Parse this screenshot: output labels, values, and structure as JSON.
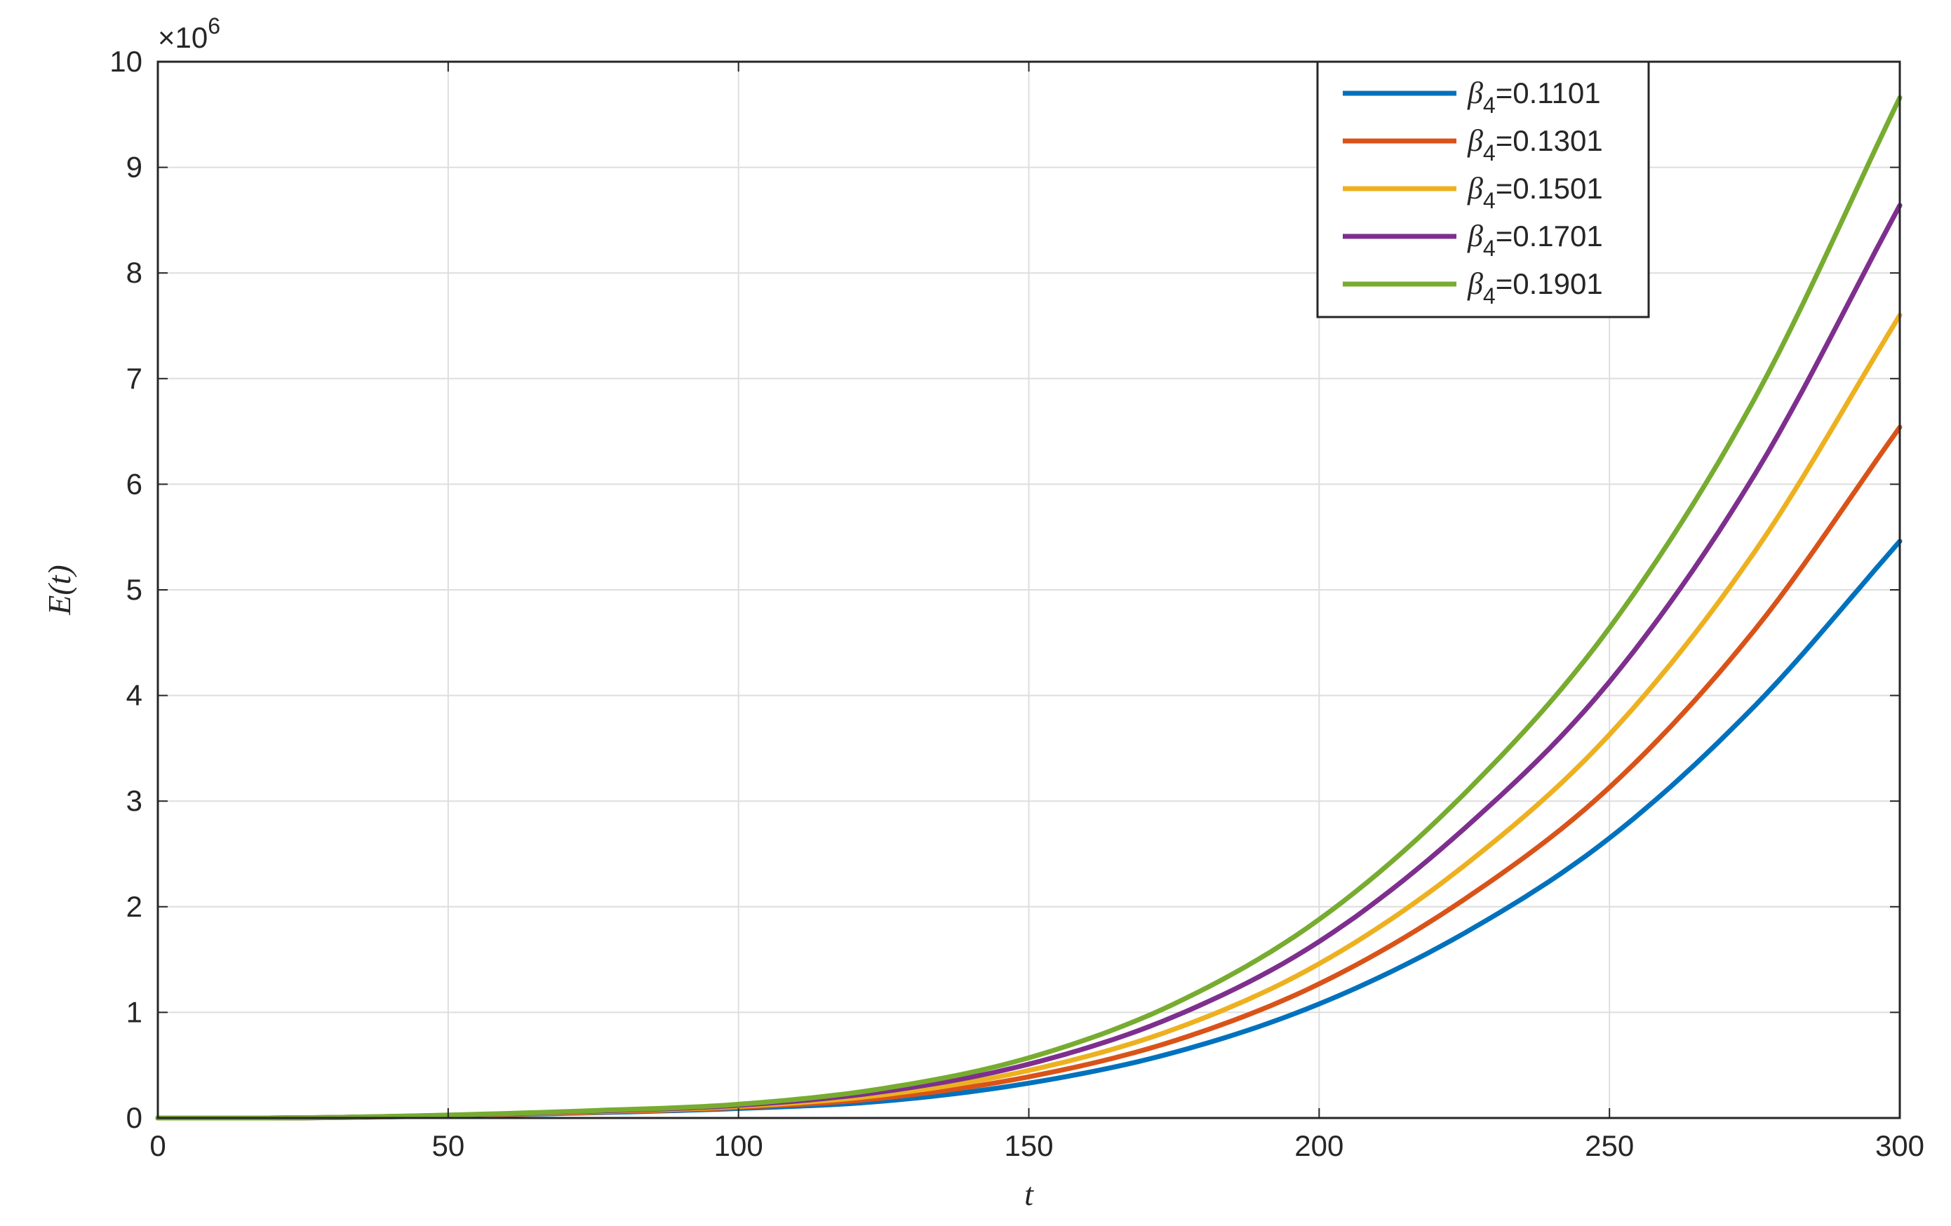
{
  "chart_data": {
    "type": "line",
    "xlabel": "t",
    "ylabel": "E(t)",
    "xlim": [
      0,
      300
    ],
    "ylim": [
      0,
      10000000
    ],
    "xticks": [
      0,
      50,
      100,
      150,
      200,
      250,
      300
    ],
    "xtick_labels": [
      "0",
      "50",
      "100",
      "150",
      "200",
      "250",
      "300"
    ],
    "yticks": [
      0,
      1000000,
      2000000,
      3000000,
      4000000,
      5000000,
      6000000,
      7000000,
      8000000,
      9000000,
      10000000
    ],
    "ytick_labels": [
      "0",
      "1",
      "2",
      "3",
      "4",
      "5",
      "6",
      "7",
      "8",
      "9",
      "10"
    ],
    "y_exponent_label": {
      "base": "×10",
      "power": "6"
    },
    "grid": true,
    "legend_position": "top-right",
    "x": [
      0,
      25,
      50,
      75,
      100,
      125,
      150,
      175,
      200,
      225,
      250,
      275,
      300
    ],
    "series": [
      {
        "name": "β4=0.1101",
        "legend_symbol": "β",
        "legend_subscript": "4",
        "legend_value": "=0.1101",
        "color": "#0072BD",
        "values": [
          0,
          1500,
          20000,
          50000,
          90000,
          160000,
          330000,
          620000,
          1080000,
          1750000,
          2650000,
          3900000,
          5460000
        ]
      },
      {
        "name": "β4=0.1301",
        "legend_symbol": "β",
        "legend_subscript": "4",
        "legend_value": "=0.1301",
        "color": "#D95319",
        "values": [
          0,
          1800,
          22000,
          55000,
          100000,
          190000,
          390000,
          730000,
          1270000,
          2070000,
          3130000,
          4620000,
          6540000
        ]
      },
      {
        "name": "β4=0.1501",
        "legend_symbol": "β",
        "legend_subscript": "4",
        "legend_value": "=0.1501",
        "color": "#EDB120",
        "values": [
          0,
          2000,
          24000,
          60000,
          110000,
          220000,
          450000,
          840000,
          1460000,
          2390000,
          3630000,
          5360000,
          7600000
        ]
      },
      {
        "name": "β4=0.1701",
        "legend_symbol": "β",
        "legend_subscript": "4",
        "legend_value": "=0.1701",
        "color": "#7E2F8E",
        "values": [
          0,
          2200,
          26000,
          65000,
          120000,
          250000,
          510000,
          960000,
          1670000,
          2740000,
          4130000,
          6090000,
          8640000
        ]
      },
      {
        "name": "β4=0.1901",
        "legend_symbol": "β",
        "legend_subscript": "4",
        "legend_value": "=0.1901",
        "color": "#77AC30",
        "values": [
          0,
          2500,
          28000,
          70000,
          130000,
          280000,
          570000,
          1080000,
          1880000,
          3070000,
          4640000,
          6810000,
          9660000
        ]
      }
    ]
  }
}
